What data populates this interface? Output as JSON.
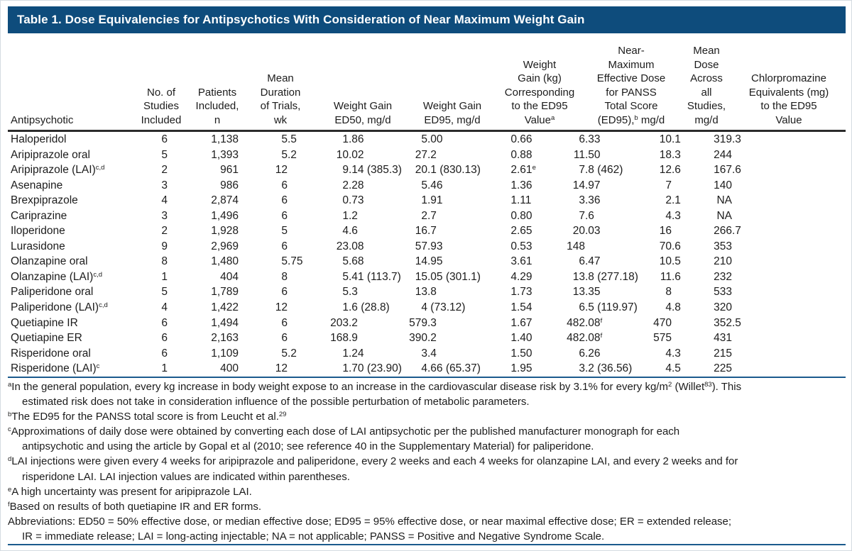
{
  "page_title": "Table 1. Dose Equivalencies for Antipsychotics With Consideration of Near Maximum Weight Gain",
  "colors": {
    "title_bar_background": "#0e4c7c",
    "title_text": "#ffffff",
    "blue_rule": "#1b5a8d",
    "dark_rule": "#2b2b2b",
    "body_text": "#1c1c1c"
  },
  "table": {
    "columns": [
      {
        "id": "antipsychotic",
        "lines": [
          "Antipsychotic"
        ]
      },
      {
        "id": "no-of-studies",
        "lines": [
          "No. of",
          "Studies",
          "Included"
        ]
      },
      {
        "id": "patients-included",
        "lines": [
          "Patients",
          "Included,",
          "n"
        ]
      },
      {
        "id": "mean-duration",
        "lines": [
          "Mean",
          "Duration",
          "of Trials,",
          "wk"
        ]
      },
      {
        "id": "weight-gain-ed50",
        "lines": [
          "Weight Gain",
          "ED50, mg/d"
        ]
      },
      {
        "id": "weight-gain-ed95",
        "lines": [
          "Weight Gain",
          "ED95, mg/d"
        ]
      },
      {
        "id": "weight-gain-kg-ed95",
        "lines": [
          "Weight",
          "Gain (kg)",
          "Corresponding",
          "to the ED95",
          "Value^{a}"
        ]
      },
      {
        "id": "near-max-effective-dose",
        "lines": [
          "Near-",
          "Maximum",
          "Effective Dose",
          "for PANSS",
          "Total Score",
          "(ED95),^{b} mg/d"
        ]
      },
      {
        "id": "mean-dose",
        "lines": [
          "Mean",
          "Dose",
          "Across",
          "all",
          "Studies,",
          "mg/d"
        ]
      },
      {
        "id": "chlorpromazine-equivalents",
        "lines": [
          "Chlorpromazine",
          "Equivalents (mg)",
          "to the ED95",
          "Value"
        ]
      }
    ],
    "rows": [
      {
        "label": "Haloperidol",
        "values": [
          "6",
          "1,138",
          "5.5",
          "1.86",
          "5.00",
          "0.66",
          "6.33",
          "10.1",
          "319.3"
        ]
      },
      {
        "label": "Aripiprazole oral",
        "values": [
          "5",
          "1,393",
          "5.2",
          "10.02",
          "27.2",
          "0.88",
          "11.50",
          "18.3",
          "244"
        ]
      },
      {
        "label": "Aripiprazole (LAI)^{c,d}",
        "values": [
          "2",
          "961",
          "12",
          "9.14 (385.3)",
          "20.1 (830.13)",
          "2.61^{e}",
          "7.8 (462)",
          "12.6",
          "167.6"
        ]
      },
      {
        "label": "Asenapine",
        "values": [
          "3",
          "986",
          "6",
          "2.28",
          "5.46",
          "1.36",
          "14.97",
          "7",
          "140"
        ]
      },
      {
        "label": "Brexpiprazole",
        "values": [
          "4",
          "2,874",
          "6",
          "0.73",
          "1.91",
          "1.11",
          "3.36",
          "2.1",
          "NA"
        ]
      },
      {
        "label": "Cariprazine",
        "values": [
          "3",
          "1,496",
          "6",
          "1.2",
          "2.7",
          "0.80",
          "7.6",
          "4.3",
          "NA"
        ]
      },
      {
        "label": "Iloperidone",
        "values": [
          "2",
          "1,928",
          "5",
          "4.6",
          "16.7",
          "2.65",
          "20.03",
          "16",
          "266.7"
        ]
      },
      {
        "label": "Lurasidone",
        "values": [
          "9",
          "2,969",
          "6",
          "23.08",
          "57.93",
          "0.53",
          "148",
          "70.6",
          "353"
        ]
      },
      {
        "label": "Olanzapine oral",
        "values": [
          "8",
          "1,480",
          "5.75",
          "5.68",
          "14.95",
          "3.61",
          "6.47",
          "10.5",
          "210"
        ]
      },
      {
        "label": "Olanzapine (LAI)^{c,d}",
        "values": [
          "1",
          "404",
          "8",
          "5.41 (113.7)",
          "15.05 (301.1)",
          "4.29",
          "13.8 (277.18)",
          "11.6",
          "232"
        ]
      },
      {
        "label": "Paliperidone oral",
        "values": [
          "5",
          "1,789",
          "6",
          "5.3",
          "13.8",
          "1.73",
          "13.35",
          "8",
          "533"
        ]
      },
      {
        "label": "Paliperidone (LAI)^{c,d}",
        "values": [
          "4",
          "1,422",
          "12",
          "1.6 (28.8)",
          "4 (73.12)",
          "1.54",
          "6.5 (119.97)",
          "4.8",
          "320"
        ]
      },
      {
        "label": "Quetiapine IR",
        "values": [
          "6",
          "1,494",
          "6",
          "203.2",
          "579.3",
          "1.67",
          "482.08^{f}",
          "470",
          "352.5"
        ]
      },
      {
        "label": "Quetiapine ER",
        "values": [
          "6",
          "2,163",
          "6",
          "168.9",
          "390.2",
          "1.40",
          "482.08^{f}",
          "575",
          "431"
        ]
      },
      {
        "label": "Risperidone oral",
        "values": [
          "6",
          "1,109",
          "5.2",
          "1.24",
          "3.4",
          "1.50",
          "6.26",
          "4.3",
          "215"
        ]
      },
      {
        "label": "Risperidone (LAI)^{c}",
        "values": [
          "1",
          "400",
          "12",
          "1.70 (23.90)",
          "4.66 (65.37)",
          "1.95",
          "3.2 (36.56)",
          "4.5",
          "225"
        ]
      }
    ]
  },
  "footnotes": [
    {
      "marker": "a",
      "text": "In the general population, every kg increase in body weight expose to an increase in the cardiovascular disease risk by 3.1% for every kg/m^{2} (Willet^{83}). This\nestimated risk does not take in consideration influence of the possible perturbation of metabolic parameters."
    },
    {
      "marker": "b",
      "text": "The ED95 for the PANSS total score is from Leucht et al.^{29}"
    },
    {
      "marker": "c",
      "text": "Approximations of daily dose were obtained by converting each dose of LAI antipsychotic per the published manufacturer monograph for each\nantipsychotic and using the article by Gopal et al (2010; see reference 40 in the Supplementary Material) for paliperidone."
    },
    {
      "marker": "d",
      "text": "LAI injections were given every 4 weeks for aripiprazole and paliperidone, every 2 weeks and each 4 weeks for olanzapine LAI, and every 2 weeks and for\nrisperidone LAI. LAI injection values are indicated within parentheses."
    },
    {
      "marker": "e",
      "text": "A high uncertainty was present for aripiprazole LAI."
    },
    {
      "marker": "f",
      "text": "Based on results of both quetiapine IR and ER forms."
    },
    {
      "marker": "",
      "text": "Abbreviations: ED50 = 50% effective dose, or median effective dose; ED95 = 95% effective dose, or near maximal effective dose; ER = extended release;\nIR = immediate release; LAI = long-acting injectable; NA = not applicable; PANSS = Positive and Negative Syndrome Scale."
    }
  ]
}
